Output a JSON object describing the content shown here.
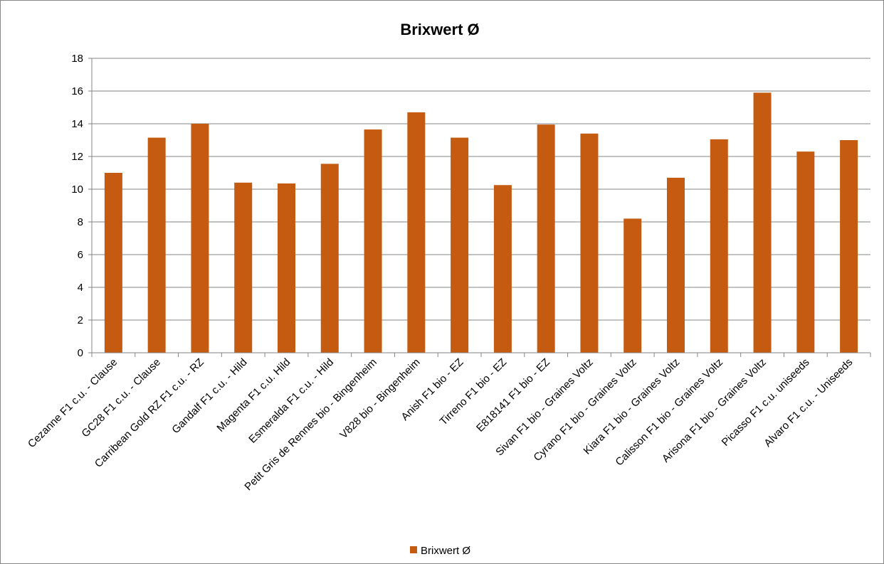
{
  "chart_data": {
    "type": "bar",
    "title": "Brixwert Ø",
    "xlabel": "",
    "ylabel": "",
    "ylim": [
      0,
      18
    ],
    "yticks": [
      0,
      2,
      4,
      6,
      8,
      10,
      12,
      14,
      16,
      18
    ],
    "grid": "horizontal",
    "legend_position": "bottom",
    "colors": {
      "bar": "#C55A11",
      "grid": "#868686",
      "axis": "#868686"
    },
    "categories": [
      "Cezanne F1 c.u. - Clause",
      "GC28 F1 c.u. - Clause",
      "Carribean Gold RZ F1 c.u. - RZ",
      "Gandalf F1 c.u. - Hild",
      "Magenta F1 c.u. Hild",
      "Esmeralda F1 c.u. - Hild",
      "Petit Gris de Rennes bio - Bingenheim",
      "V828 bio - Bingenheim",
      "Anish F1 bio - EZ",
      "Tirreno F1 bio - EZ",
      "E818141 F1 bio - EZ",
      "Sivan F1 bio - Graines Voltz",
      "Cyrano F1 bio - Graines Voltz",
      "Kiara F1 bio - Graines Voltz",
      "Calisson F1 bio - Graines Voltz",
      "Arisona F1 bio - Graines Voltz",
      "Picasso F1 c.u. uniseeds",
      "Alvaro F1 c.u. - Uniseeds"
    ],
    "series": [
      {
        "name": "Brixwert Ø",
        "values": [
          11.0,
          13.15,
          14.0,
          10.4,
          10.35,
          11.55,
          13.65,
          14.7,
          13.15,
          10.25,
          13.95,
          13.4,
          8.2,
          10.7,
          13.05,
          15.9,
          12.3,
          13.0
        ]
      }
    ]
  }
}
